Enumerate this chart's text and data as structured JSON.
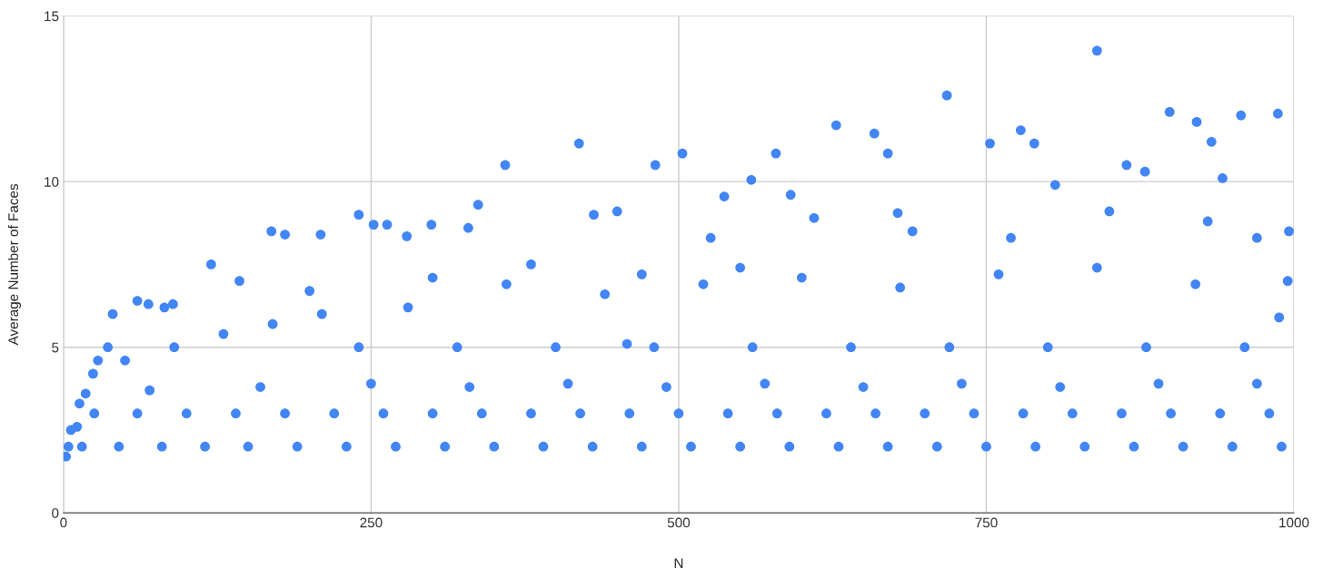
{
  "chart_data": {
    "type": "scatter",
    "xlabel": "N",
    "ylabel": "Average Number of Faces",
    "xlim": [
      0,
      1000
    ],
    "ylim": [
      0,
      15
    ],
    "xticks": [
      0,
      250,
      500,
      750,
      1000
    ],
    "yticks": [
      0,
      5,
      10,
      15
    ],
    "grid": true,
    "marker": "circle",
    "series": [
      {
        "color": "#4285f4",
        "x": [
          2,
          4,
          6,
          11,
          13,
          18,
          24,
          28,
          36,
          40,
          60,
          69,
          82,
          89,
          120,
          143,
          169,
          180,
          209,
          240,
          252,
          263,
          279,
          299,
          329,
          337,
          359,
          419,
          431,
          450,
          458,
          481,
          503,
          526,
          537,
          559,
          579,
          591,
          628,
          659,
          670,
          678,
          718,
          753,
          778,
          789,
          806,
          840,
          864,
          879,
          899,
          921,
          933,
          942,
          957,
          987,
          996,
          988,
          15,
          45,
          80,
          115,
          150,
          190,
          230,
          270,
          310,
          350,
          390,
          430,
          470,
          510,
          550,
          590,
          630,
          670,
          710,
          750,
          790,
          830,
          870,
          910,
          950,
          990,
          25,
          60,
          100,
          140,
          180,
          220,
          260,
          300,
          340,
          380,
          420,
          460,
          500,
          540,
          580,
          620,
          660,
          700,
          740,
          780,
          820,
          860,
          900,
          940,
          980,
          70,
          160,
          250,
          330,
          410,
          490,
          570,
          650,
          730,
          810,
          890,
          970,
          50,
          90,
          130,
          170,
          210,
          240,
          280,
          320,
          360,
          400,
          440,
          480,
          520,
          560,
          600,
          640,
          680,
          720,
          760,
          800,
          840,
          880,
          920,
          960,
          995,
          200,
          300,
          380,
          470,
          550,
          610,
          690,
          770,
          850,
          930,
          970
        ],
        "values": [
          1.7,
          2.0,
          2.5,
          2.6,
          3.3,
          3.6,
          4.2,
          4.6,
          5.0,
          6.0,
          6.4,
          6.3,
          6.2,
          6.3,
          7.5,
          7.0,
          8.5,
          8.4,
          8.4,
          9.0,
          8.7,
          8.7,
          8.35,
          8.7,
          8.6,
          9.3,
          10.5,
          11.15,
          9.0,
          9.1,
          5.1,
          10.5,
          10.85,
          8.3,
          9.55,
          10.05,
          10.85,
          9.6,
          11.7,
          11.45,
          10.85,
          9.05,
          12.6,
          11.15,
          11.55,
          11.15,
          9.9,
          13.95,
          10.5,
          10.3,
          12.1,
          11.8,
          11.2,
          10.1,
          12.0,
          12.05,
          8.5,
          5.9,
          2,
          2,
          2,
          2,
          2,
          2,
          2,
          2,
          2,
          2,
          2,
          2,
          2,
          2,
          2,
          2,
          2,
          2,
          2,
          2,
          2,
          2,
          2,
          2,
          2,
          2,
          3,
          3,
          3,
          3,
          3,
          3,
          3,
          3,
          3,
          3,
          3,
          3,
          3,
          3,
          3,
          3,
          3,
          3,
          3,
          3,
          3,
          3,
          3,
          3,
          3,
          3.7,
          3.8,
          3.9,
          3.8,
          3.9,
          3.8,
          3.9,
          3.8,
          3.9,
          3.8,
          3.9,
          3.9,
          4.6,
          5.0,
          5.4,
          5.7,
          6.0,
          5.0,
          6.2,
          5.0,
          6.9,
          5.0,
          6.6,
          5.0,
          6.9,
          5.0,
          7.1,
          5.0,
          6.8,
          5.0,
          7.2,
          5.0,
          7.4,
          5.0,
          6.9,
          5.0,
          7.0,
          6.7,
          7.1,
          7.5,
          7.2,
          7.4,
          8.9,
          8.5,
          8.3,
          9.1,
          8.8,
          8.3
        ]
      }
    ]
  }
}
